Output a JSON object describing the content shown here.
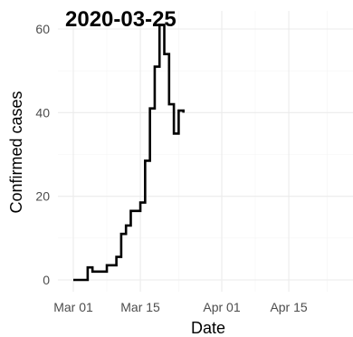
{
  "chart_data": {
    "type": "line",
    "step": true,
    "title": "2020-03-25",
    "xlabel": "Date",
    "ylabel": "Confirmed cases",
    "x_ticks": [
      "Mar 01",
      "Mar 15",
      "Apr 01",
      "Apr 15"
    ],
    "y_ticks": [
      "0",
      "20",
      "40",
      "60"
    ],
    "grid": true,
    "legend": "none",
    "ylim": [
      0,
      60
    ],
    "series": [
      {
        "color": "#000000",
        "points": [
          {
            "x": "2020-03-01",
            "y": 0
          },
          {
            "x": "2020-03-02",
            "y": 0
          },
          {
            "x": "2020-03-03",
            "y": 0
          },
          {
            "x": "2020-03-04",
            "y": 3
          },
          {
            "x": "2020-03-05",
            "y": 2
          },
          {
            "x": "2020-03-06",
            "y": 2
          },
          {
            "x": "2020-03-07",
            "y": 2
          },
          {
            "x": "2020-03-08",
            "y": 3.5
          },
          {
            "x": "2020-03-09",
            "y": 3.5
          },
          {
            "x": "2020-03-10",
            "y": 5.5
          },
          {
            "x": "2020-03-11",
            "y": 11
          },
          {
            "x": "2020-03-12",
            "y": 13
          },
          {
            "x": "2020-03-13",
            "y": 16.5
          },
          {
            "x": "2020-03-14",
            "y": 16.5
          },
          {
            "x": "2020-03-15",
            "y": 18.5
          },
          {
            "x": "2020-03-16",
            "y": 28.5
          },
          {
            "x": "2020-03-17",
            "y": 41
          },
          {
            "x": "2020-03-18",
            "y": 51
          },
          {
            "x": "2020-03-19",
            "y": 61
          },
          {
            "x": "2020-03-20",
            "y": 54
          },
          {
            "x": "2020-03-21",
            "y": 42
          },
          {
            "x": "2020-03-22",
            "y": 35
          },
          {
            "x": "2020-03-23",
            "y": 40.5
          },
          {
            "x": "2020-03-24",
            "y": 40
          }
        ]
      }
    ]
  }
}
